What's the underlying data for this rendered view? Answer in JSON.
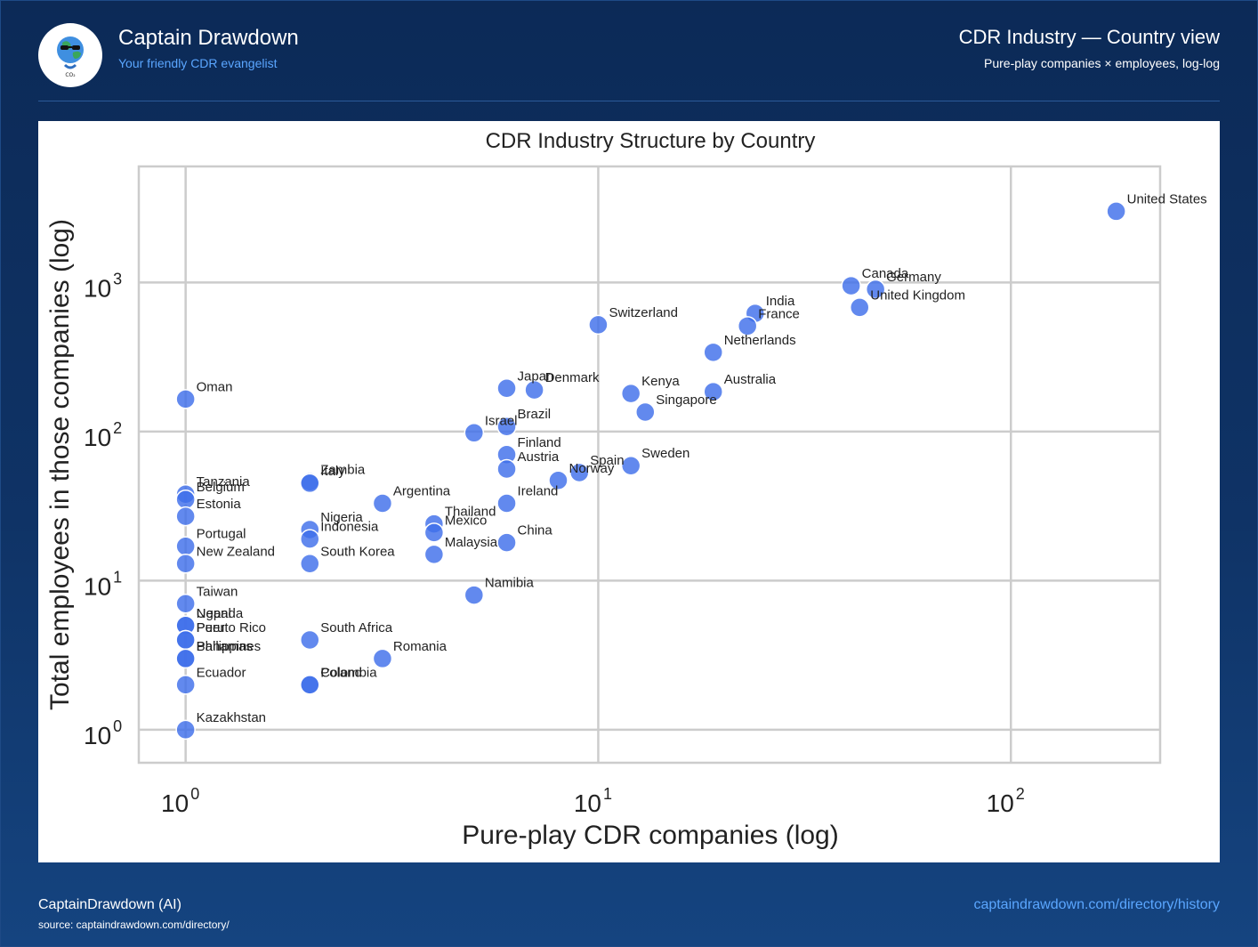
{
  "header": {
    "brand_title": "Captain Drawdown",
    "brand_subtitle": "Your friendly CDR evangelist",
    "page_title": "CDR Industry — Country view",
    "page_subtitle": "Pure-play companies × employees, log-log"
  },
  "logo": {
    "icon": "earth-mascot-icon",
    "text": "CO₂"
  },
  "footer": {
    "author": "CaptainDrawdown (AI)",
    "source": "source: captaindrawdown.com/directory/",
    "link": "captaindrawdown.com/directory/history"
  },
  "colors": {
    "point": "#3f6fea",
    "accent": "#5aa6ff",
    "background": "#0f3366"
  },
  "chart_data": {
    "type": "scatter",
    "title": "CDR Industry Structure by Country",
    "xlabel": "Pure-play CDR companies (log)",
    "ylabel": "Total employees in those companies (log)",
    "xscale": "log",
    "yscale": "log",
    "xlim": [
      0.77,
      230
    ],
    "ylim": [
      0.6,
      6000
    ],
    "grid": true,
    "x_ticks": [
      {
        "base": "10",
        "exp": "0",
        "value": 1
      },
      {
        "base": "10",
        "exp": "1",
        "value": 10
      },
      {
        "base": "10",
        "exp": "2",
        "value": 100
      }
    ],
    "y_ticks": [
      {
        "base": "10",
        "exp": "0",
        "value": 1
      },
      {
        "base": "10",
        "exp": "1",
        "value": 10
      },
      {
        "base": "10",
        "exp": "2",
        "value": 100
      },
      {
        "base": "10",
        "exp": "3",
        "value": 1000
      }
    ],
    "points": [
      {
        "label": "United States",
        "x": 180,
        "y": 3000
      },
      {
        "label": "Canada",
        "x": 41,
        "y": 950
      },
      {
        "label": "Germany",
        "x": 47,
        "y": 900
      },
      {
        "label": "United Kingdom",
        "x": 43,
        "y": 680
      },
      {
        "label": "India",
        "x": 24,
        "y": 620
      },
      {
        "label": "France",
        "x": 23,
        "y": 510
      },
      {
        "label": "Switzerland",
        "x": 10,
        "y": 520
      },
      {
        "label": "Netherlands",
        "x": 19,
        "y": 340
      },
      {
        "label": "Australia",
        "x": 19,
        "y": 185
      },
      {
        "label": "Kenya",
        "x": 12,
        "y": 180
      },
      {
        "label": "Singapore",
        "x": 13,
        "y": 135
      },
      {
        "label": "Japan",
        "x": 6,
        "y": 195
      },
      {
        "label": "Denmark",
        "x": 7,
        "y": 190
      },
      {
        "label": "Oman",
        "x": 1,
        "y": 165
      },
      {
        "label": "Brazil",
        "x": 6,
        "y": 108
      },
      {
        "label": "Israel",
        "x": 5,
        "y": 98
      },
      {
        "label": "Finland",
        "x": 6,
        "y": 70
      },
      {
        "label": "Austria",
        "x": 6,
        "y": 56
      },
      {
        "label": "Sweden",
        "x": 12,
        "y": 59
      },
      {
        "label": "Norway",
        "x": 8,
        "y": 47
      },
      {
        "label": "Spain",
        "x": 9,
        "y": 53
      },
      {
        "label": "Ireland",
        "x": 6,
        "y": 33
      },
      {
        "label": "Zambia",
        "x": 2,
        "y": 46
      },
      {
        "label": "Italy",
        "x": 2,
        "y": 45
      },
      {
        "label": "Argentina",
        "x": 3,
        "y": 33
      },
      {
        "label": "Tanzania",
        "x": 1,
        "y": 38
      },
      {
        "label": "Belgium",
        "x": 1,
        "y": 35
      },
      {
        "label": "Estonia",
        "x": 1,
        "y": 27
      },
      {
        "label": "Thailand",
        "x": 4,
        "y": 24
      },
      {
        "label": "Mexico",
        "x": 4,
        "y": 21
      },
      {
        "label": "Nigeria",
        "x": 2,
        "y": 22
      },
      {
        "label": "Indonesia",
        "x": 2,
        "y": 19
      },
      {
        "label": "China",
        "x": 6,
        "y": 18
      },
      {
        "label": "Malaysia",
        "x": 4,
        "y": 15
      },
      {
        "label": "Portugal",
        "x": 1,
        "y": 17
      },
      {
        "label": "New Zealand",
        "x": 1,
        "y": 13
      },
      {
        "label": "South Korea",
        "x": 2,
        "y": 13
      },
      {
        "label": "Namibia",
        "x": 5,
        "y": 8
      },
      {
        "label": "Taiwan",
        "x": 1,
        "y": 7
      },
      {
        "label": "Nepal",
        "x": 1,
        "y": 5
      },
      {
        "label": "Uganda",
        "x": 1,
        "y": 5
      },
      {
        "label": "Peru",
        "x": 1,
        "y": 4
      },
      {
        "label": "Puerto Rico",
        "x": 1,
        "y": 4
      },
      {
        "label": "South Africa",
        "x": 2,
        "y": 4
      },
      {
        "label": "Bahamas",
        "x": 1,
        "y": 3
      },
      {
        "label": "Philippines",
        "x": 1,
        "y": 3
      },
      {
        "label": "Romania",
        "x": 3,
        "y": 3
      },
      {
        "label": "Ecuador",
        "x": 1,
        "y": 2
      },
      {
        "label": "Poland",
        "x": 2,
        "y": 2
      },
      {
        "label": "Colombia",
        "x": 2,
        "y": 2
      },
      {
        "label": "Kazakhstan",
        "x": 1,
        "y": 1
      }
    ]
  }
}
